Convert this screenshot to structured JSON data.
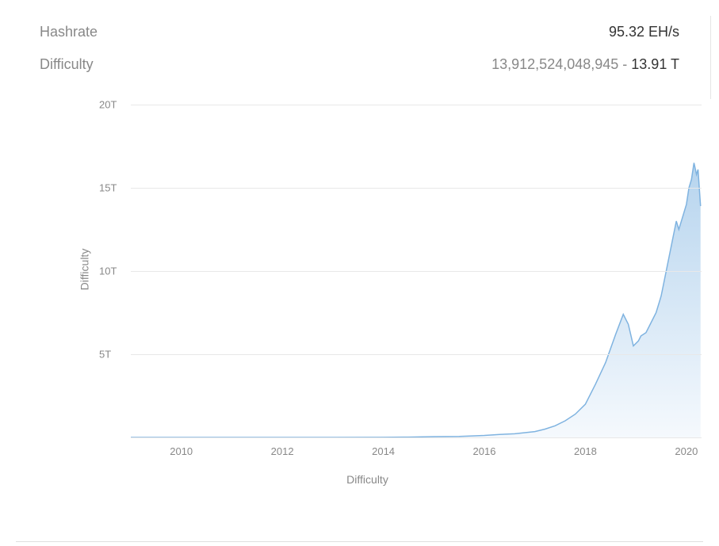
{
  "stats": {
    "hashrate": {
      "label": "Hashrate",
      "value": "95.32 EH/s"
    },
    "difficulty": {
      "label": "Difficulty",
      "number": "13,912,524,048,945",
      "sep": " - ",
      "short": "13.91 T"
    }
  },
  "chart": {
    "type": "area",
    "ylabel": "Difficulty",
    "xlabel": "Difficulty",
    "ylabel_fontsize": 14,
    "xlabel_fontsize": 14,
    "label_color": "#888888",
    "background_color": "#ffffff",
    "grid_color": "#e8e8e8",
    "line_color": "#7fb3e0",
    "line_width": 1.5,
    "fill_top_color": "#b6d4ee",
    "fill_bottom_color": "#f5f9fd",
    "tick_fontsize": 13,
    "tick_color": "#888888",
    "ylim": [
      0,
      20
    ],
    "yticks": [
      {
        "value": 5,
        "label": "5T"
      },
      {
        "value": 10,
        "label": "10T"
      },
      {
        "value": 15,
        "label": "15T"
      },
      {
        "value": 20,
        "label": "20T"
      }
    ],
    "xlim": [
      2009,
      2020.3
    ],
    "xticks": [
      {
        "value": 2010,
        "label": "2010"
      },
      {
        "value": 2012,
        "label": "2012"
      },
      {
        "value": 2014,
        "label": "2014"
      },
      {
        "value": 2016,
        "label": "2016"
      },
      {
        "value": 2018,
        "label": "2018"
      },
      {
        "value": 2020,
        "label": "2020"
      }
    ],
    "data": [
      {
        "x": 2009.0,
        "y": 0.0
      },
      {
        "x": 2010.0,
        "y": 0.0
      },
      {
        "x": 2011.0,
        "y": 0.0
      },
      {
        "x": 2012.0,
        "y": 0.0
      },
      {
        "x": 2013.0,
        "y": 0.0
      },
      {
        "x": 2014.0,
        "y": 0.005
      },
      {
        "x": 2014.5,
        "y": 0.02
      },
      {
        "x": 2015.0,
        "y": 0.05
      },
      {
        "x": 2015.5,
        "y": 0.06
      },
      {
        "x": 2016.0,
        "y": 0.12
      },
      {
        "x": 2016.3,
        "y": 0.18
      },
      {
        "x": 2016.6,
        "y": 0.22
      },
      {
        "x": 2017.0,
        "y": 0.35
      },
      {
        "x": 2017.2,
        "y": 0.5
      },
      {
        "x": 2017.4,
        "y": 0.7
      },
      {
        "x": 2017.6,
        "y": 1.0
      },
      {
        "x": 2017.8,
        "y": 1.4
      },
      {
        "x": 2018.0,
        "y": 2.0
      },
      {
        "x": 2018.2,
        "y": 3.2
      },
      {
        "x": 2018.4,
        "y": 4.5
      },
      {
        "x": 2018.6,
        "y": 6.2
      },
      {
        "x": 2018.75,
        "y": 7.4
      },
      {
        "x": 2018.85,
        "y": 6.8
      },
      {
        "x": 2018.95,
        "y": 5.5
      },
      {
        "x": 2019.05,
        "y": 5.8
      },
      {
        "x": 2019.1,
        "y": 6.1
      },
      {
        "x": 2019.2,
        "y": 6.3
      },
      {
        "x": 2019.3,
        "y": 6.9
      },
      {
        "x": 2019.4,
        "y": 7.5
      },
      {
        "x": 2019.5,
        "y": 8.5
      },
      {
        "x": 2019.6,
        "y": 10.0
      },
      {
        "x": 2019.7,
        "y": 11.5
      },
      {
        "x": 2019.8,
        "y": 13.0
      },
      {
        "x": 2019.85,
        "y": 12.5
      },
      {
        "x": 2019.92,
        "y": 13.2
      },
      {
        "x": 2020.0,
        "y": 14.0
      },
      {
        "x": 2020.05,
        "y": 15.0
      },
      {
        "x": 2020.1,
        "y": 15.5
      },
      {
        "x": 2020.15,
        "y": 16.5
      },
      {
        "x": 2020.2,
        "y": 15.8
      },
      {
        "x": 2020.23,
        "y": 16.1
      },
      {
        "x": 2020.28,
        "y": 13.9
      }
    ]
  }
}
